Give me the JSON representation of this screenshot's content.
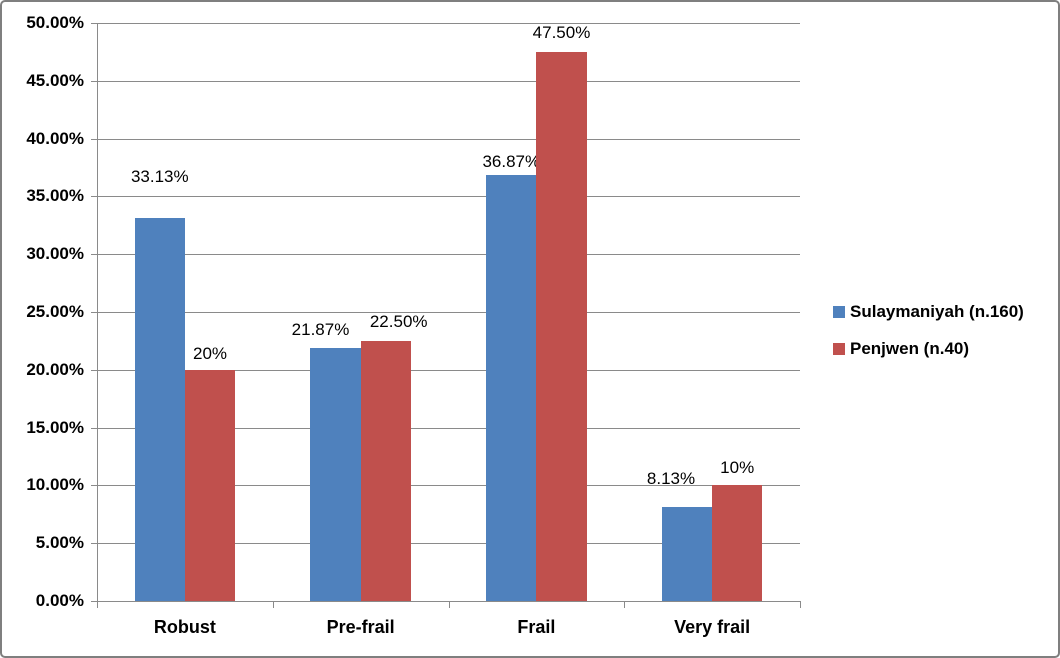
{
  "chart_data": {
    "type": "bar",
    "title": "",
    "xlabel": "",
    "ylabel": "",
    "categories": [
      "Robust",
      "Pre-frail",
      "Frail",
      "Very frail"
    ],
    "series": [
      {
        "name": "Sulaymaniyah (n.160)",
        "color": "#4F81BD",
        "values": [
          33.13,
          21.87,
          36.87,
          8.13
        ],
        "data_labels": [
          "33.13%",
          "21.87%",
          "36.87%",
          "8.13%"
        ]
      },
      {
        "name": "Penjwen (n.40)",
        "color": "#C0504D",
        "values": [
          20,
          22.5,
          47.5,
          10
        ],
        "data_labels": [
          "20%",
          "22.50%",
          "47.50%",
          "10%"
        ]
      }
    ],
    "ylim": [
      0,
      50
    ],
    "ytick_step": 5,
    "ytick_labels": [
      "0.00%",
      "5.00%",
      "10.00%",
      "15.00%",
      "20.00%",
      "25.00%",
      "30.00%",
      "35.00%",
      "40.00%",
      "45.00%",
      "50.00%"
    ],
    "grid": true,
    "legend_position": "right",
    "label_offsets": {
      "dx": [
        [
          0,
          -15,
          0,
          -16
        ],
        [
          0,
          13,
          0,
          0
        ]
      ],
      "dy": [
        [
          31,
          8,
          3,
          18
        ],
        [
          6,
          9,
          9,
          7
        ]
      ]
    },
    "colors": {
      "gridline": "#8A8A8A",
      "axis": "#8A8A8A",
      "text": "#000000",
      "border": "#7F7F7F",
      "background": "#FFFFFF"
    }
  }
}
